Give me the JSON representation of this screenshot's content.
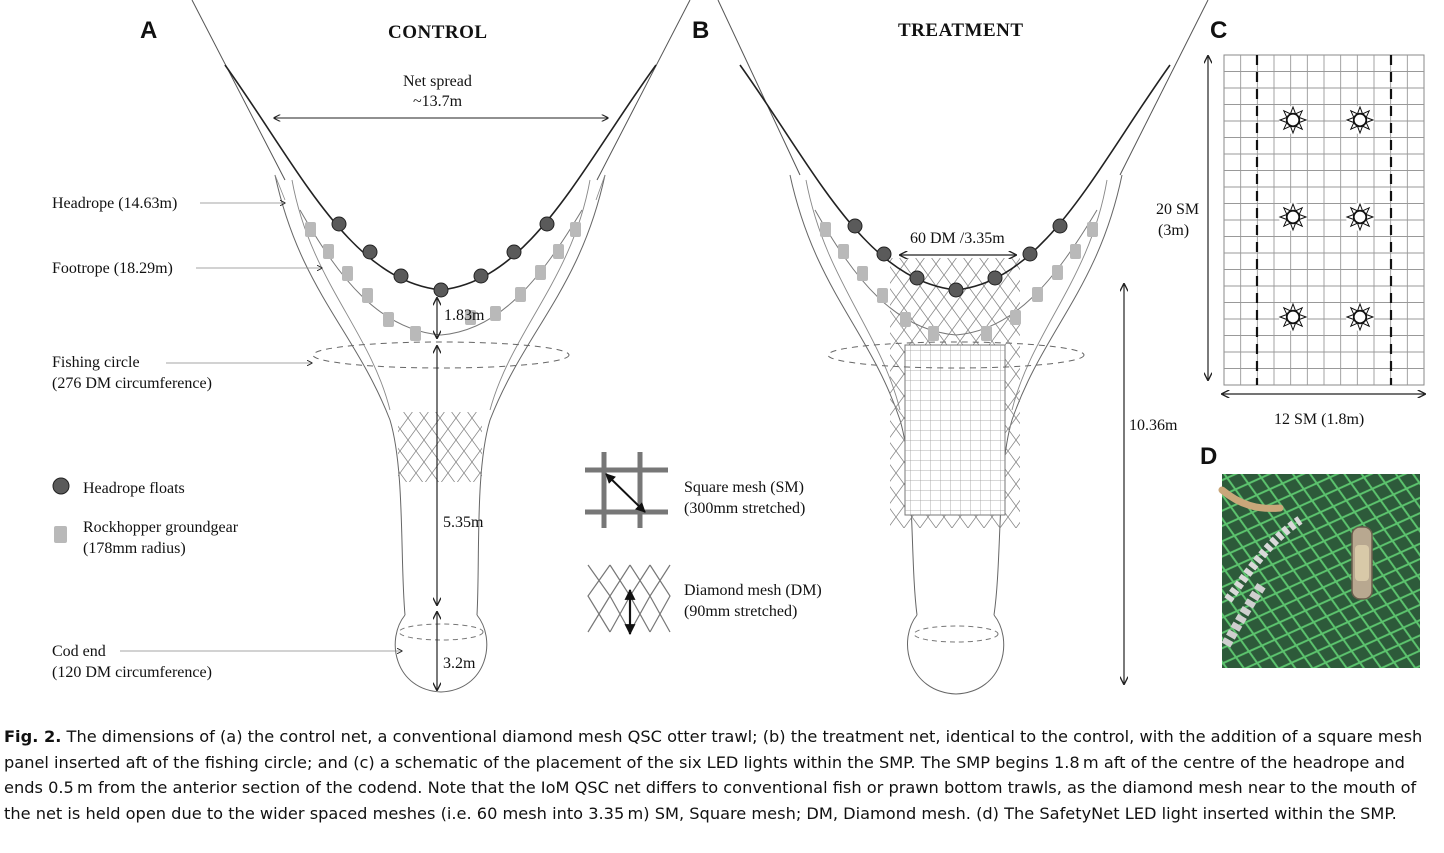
{
  "panels": {
    "a": {
      "letter": "A",
      "title": "CONTROL",
      "net_spread_line1": "Net spread",
      "net_spread_line2": "~13.7m",
      "headrope": "Headrope (14.63m)",
      "footrope": "Footrope (18.29m)",
      "fishing_circle_line1": "Fishing circle",
      "fishing_circle_line2": "(276 DM circumference)",
      "dim_1": "1.83m",
      "dim_2": "5.35m",
      "dim_3": "3.2m",
      "legend_floats": "Headrope floats",
      "legend_rock_line1": "Rockhopper groundgear",
      "legend_rock_line2": "(178mm radius)",
      "cod_end_line1": "Cod end",
      "cod_end_line2": "(120 DM circumference)"
    },
    "mesh_key": {
      "square_line1": "Square mesh (SM)",
      "square_line2": "(300mm stretched)",
      "diamond_line1": "Diamond mesh (DM)",
      "diamond_line2": "(90mm stretched)"
    },
    "b": {
      "letter": "B",
      "title": "TREATMENT",
      "dm_label": "60 DM /3.35m",
      "length": "10.36m"
    },
    "c": {
      "letter": "C",
      "height_line1": "20 SM",
      "height_line2": "(3m)",
      "width": "12 SM (1.8m)"
    },
    "d": {
      "letter": "D"
    }
  },
  "caption": {
    "fig_label": "Fig. 2.",
    "text": " The dimensions of (a) the control net, a conventional diamond mesh QSC otter trawl; (b) the treatment net, identical to the control, with the addition of a square mesh panel inserted aft of the fishing circle; and (c) a schematic of the placement of the six LED lights within the SMP. The SMP begins 1.8 m aft of the centre of the headrope and ends 0.5 m from the anterior section of the codend. Note that the IoM QSC net differs to conventional fish or prawn bottom trawls, as the diamond mesh near to the mouth of the net is held open due to the wider spaced meshes (i.e. 60 mesh into 3.35 m) SM, Square mesh; DM, Diamond mesh. (d) The SafetyNet LED light inserted within the SMP."
  },
  "colors": {
    "float": "#5a5a5a",
    "rockhopper": "#b9b9b9",
    "net_green": "#3fae5a",
    "line": "#333333"
  },
  "icons": {
    "led": "sun-burst-icon",
    "float": "filled-circle-icon",
    "rockhopper": "rounded-rect-icon"
  }
}
